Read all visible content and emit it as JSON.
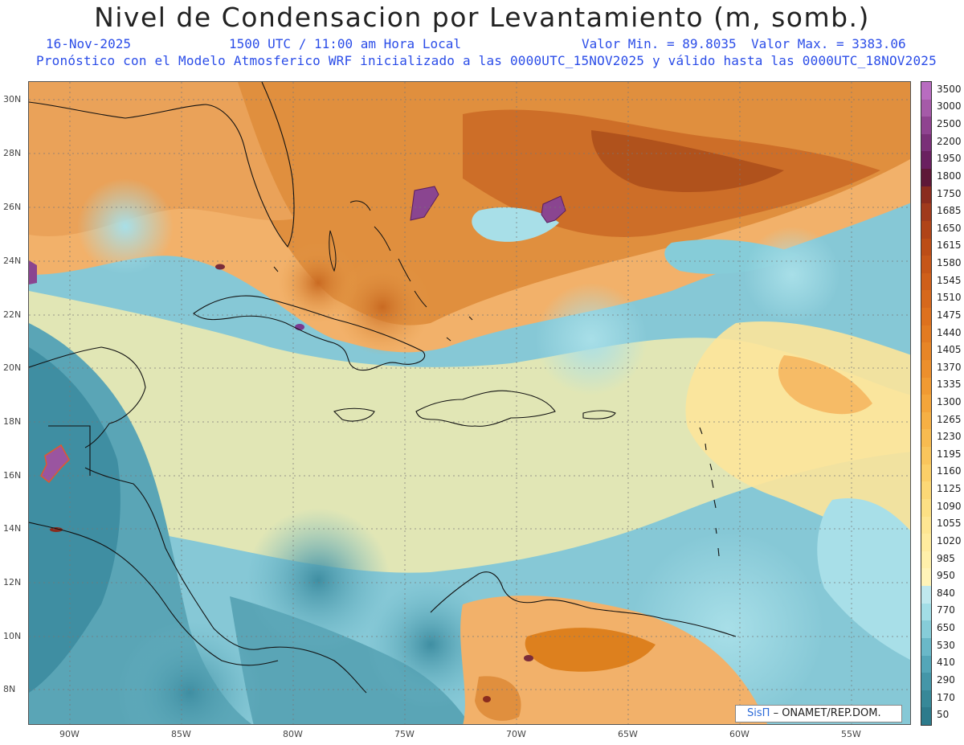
{
  "header": {
    "title": "Nivel de Condensacion por Levantamiento (m, somb.)",
    "date": "16-Nov-2025",
    "time": "1500 UTC / 11:00 am Hora Local",
    "vmin": "Valor Min. = 89.8035",
    "vmax": "Valor Max. = 3383.06",
    "info": "Pronóstico con el Modelo Atmosferico WRF inicializado a las 0000UTC_15NOV2025 y válido hasta las  0000UTC_18NOV2025"
  },
  "axes": {
    "lat_labels": [
      "30N",
      "28N",
      "26N",
      "24N",
      "22N",
      "20N",
      "18N",
      "16N",
      "14N",
      "12N",
      "10N",
      "8N"
    ],
    "lon_labels": [
      "90W",
      "85W",
      "80W",
      "75W",
      "70W",
      "65W",
      "60W",
      "55W"
    ]
  },
  "colorbar": {
    "labels": [
      "3500",
      "3000",
      "2500",
      "2200",
      "1950",
      "1800",
      "1750",
      "1685",
      "1650",
      "1615",
      "1580",
      "1545",
      "1510",
      "1475",
      "1440",
      "1405",
      "1370",
      "1335",
      "1300",
      "1265",
      "1230",
      "1195",
      "1160",
      "1125",
      "1090",
      "1055",
      "1020",
      "985",
      "950",
      "840",
      "770",
      "650",
      "530",
      "410",
      "290",
      "170",
      "50"
    ],
    "colors": [
      "#b86cc0",
      "#a55aa8",
      "#8f4390",
      "#7a3078",
      "#6a2060",
      "#5e1838",
      "#8a2c1e",
      "#a03a1c",
      "#b04418",
      "#bc4d16",
      "#c65618",
      "#cf5f1a",
      "#d6681c",
      "#dd711e",
      "#e27b22",
      "#e78526",
      "#ec8f2c",
      "#f09a32",
      "#f4a53a",
      "#f6b044",
      "#f8bb50",
      "#f9c55c",
      "#fbcf68",
      "#fcd876",
      "#fde084",
      "#fee692",
      "#ffeb9e",
      "#fff0aa",
      "#fff4b8",
      "#bfe8ee",
      "#a2dde6",
      "#86ccd8",
      "#6ab8c8",
      "#54a6b8",
      "#4496a8",
      "#378898",
      "#2d7b8c"
    ]
  },
  "credit": {
    "logo": "SisΠ",
    "text": "– ONAMET/REP.DOM."
  }
}
